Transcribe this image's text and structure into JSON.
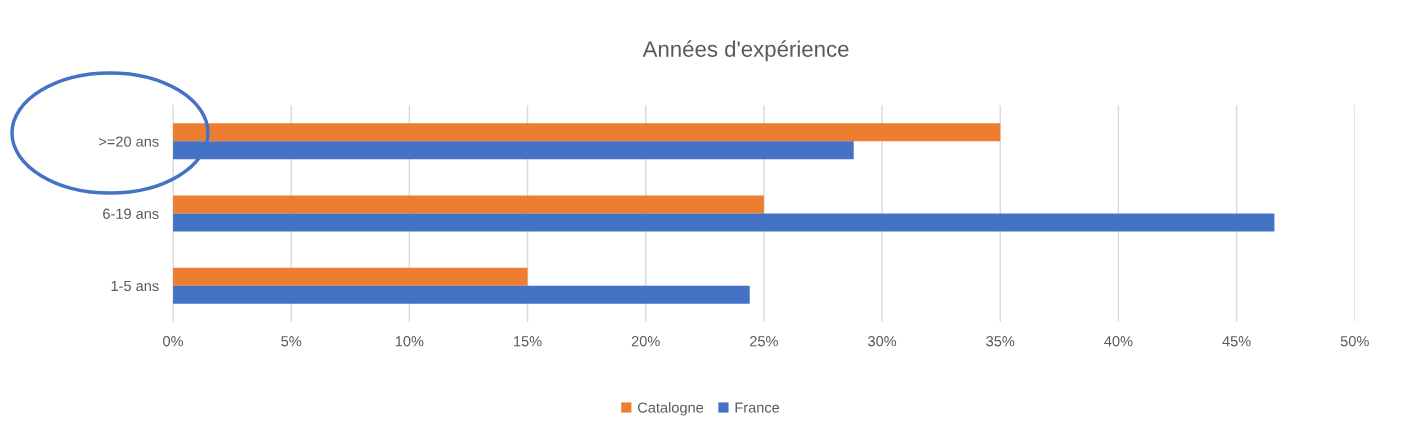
{
  "chart_data": {
    "type": "bar",
    "orientation": "horizontal",
    "title": "Années d'expérience",
    "categories": [
      ">=20 ans",
      "6-19 ans",
      "1-5 ans"
    ],
    "series": [
      {
        "name": "Catalogne",
        "color": "#ed7d31",
        "values": [
          35,
          25,
          15
        ]
      },
      {
        "name": "France",
        "color": "#4472c4",
        "values": [
          28.8,
          46.6,
          24.4
        ]
      }
    ],
    "xlim": [
      0,
      50
    ],
    "xticks": [
      {
        "value": 0,
        "label": "0%"
      },
      {
        "value": 5,
        "label": "5%"
      },
      {
        "value": 10,
        "label": "10%"
      },
      {
        "value": 15,
        "label": "15%"
      },
      {
        "value": 20,
        "label": "20%"
      },
      {
        "value": 25,
        "label": "25%"
      },
      {
        "value": 30,
        "label": "30%"
      },
      {
        "value": 35,
        "label": "35%"
      },
      {
        "value": 40,
        "label": "40%"
      },
      {
        "value": 45,
        "label": "45%"
      },
      {
        "value": 50,
        "label": "50%"
      }
    ],
    "grid": "x",
    "legend": "bottom"
  }
}
